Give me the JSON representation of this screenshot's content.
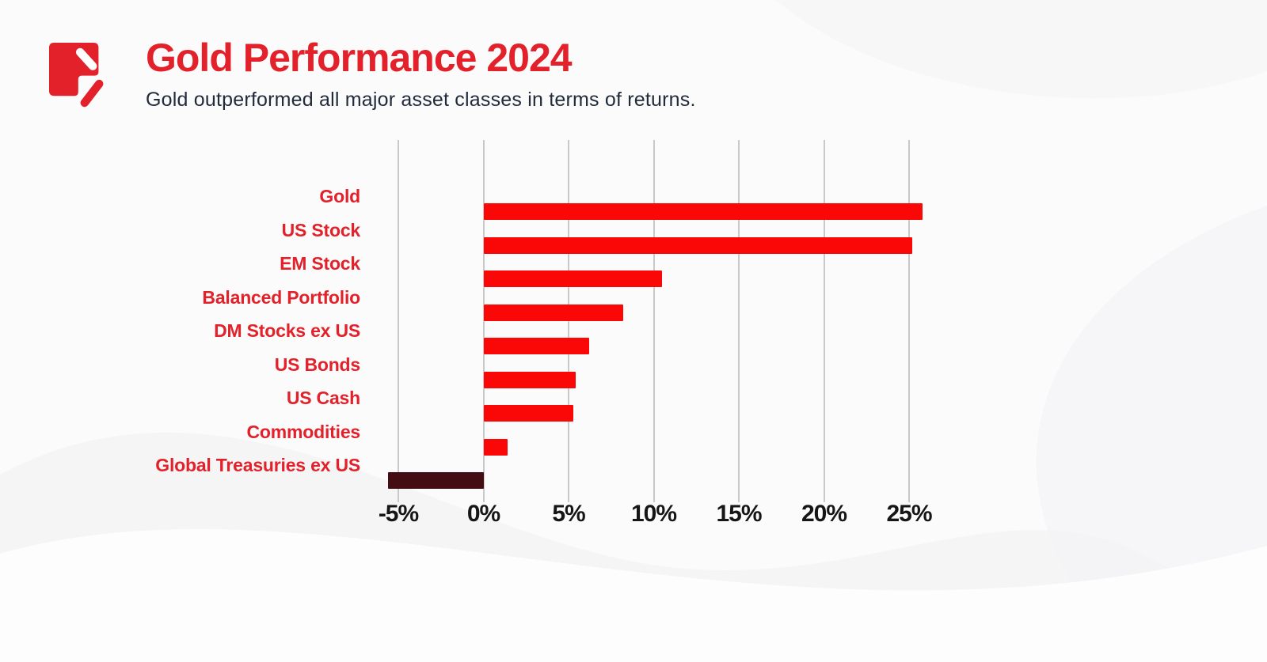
{
  "header": {
    "title": "Gold Performance 2024",
    "subtitle": "Gold outperformed all major asset classes in terms of returns.",
    "logo_icon": "red-square-pen-slash-logo"
  },
  "colors": {
    "accent_red": "#E3212B",
    "bar_positive": "#FA0707",
    "bar_negative": "#440D12",
    "subtitle_text": "#212B3B",
    "axis_tick_text": "#161616",
    "gridline": "#C9C9C9",
    "background": "#FBFBFB",
    "logo_red": "#E3212B"
  },
  "chart_data": {
    "type": "bar",
    "orientation": "horizontal",
    "title": "Gold Performance 2024",
    "subtitle": "Gold outperformed all major asset classes in terms of returns.",
    "categories": [
      "Gold",
      "US Stock",
      "EM Stock",
      "Balanced Portfolio",
      "DM Stocks ex US",
      "US Bonds",
      "US Cash",
      "Commodities",
      "Global Treasuries ex US"
    ],
    "values": [
      25.8,
      25.2,
      10.5,
      8.2,
      6.2,
      5.4,
      5.3,
      1.4,
      -5.6
    ],
    "unit": "%",
    "xlabel": "",
    "ylabel": "",
    "xlim": [
      -5,
      25
    ],
    "x_ticks": [
      "-5%",
      "0%",
      "5%",
      "10%",
      "15%",
      "20%",
      "25%"
    ],
    "x_tick_values": [
      -5,
      0,
      5,
      10,
      15,
      20,
      25
    ],
    "grid": true,
    "legend": false,
    "baseline_value": 0
  }
}
